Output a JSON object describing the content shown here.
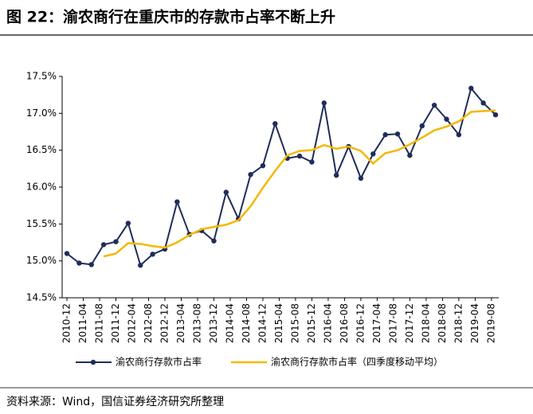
{
  "chart_data": {
    "type": "line",
    "title": "图 22：渝农商行在重庆市的存款市占率不断上升",
    "source": "资料来源：Wind，国信证券经济研究所整理",
    "x": [
      "2010-12",
      "2011-03",
      "2011-06",
      "2011-09",
      "2011-12",
      "2012-03",
      "2012-06",
      "2012-09",
      "2012-12",
      "2013-03",
      "2013-06",
      "2013-09",
      "2013-12",
      "2014-03",
      "2014-06",
      "2014-09",
      "2014-12",
      "2015-03",
      "2015-06",
      "2015-09",
      "2015-12",
      "2016-03",
      "2016-06",
      "2016-09",
      "2016-12",
      "2017-03",
      "2017-06",
      "2017-09",
      "2017-12",
      "2018-03",
      "2018-06",
      "2018-09",
      "2018-12",
      "2019-03",
      "2019-06",
      "2019-09"
    ],
    "xticks": [
      "2010-12",
      "2011-04",
      "2011-08",
      "2011-12",
      "2012-04",
      "2012-08",
      "2012-12",
      "2013-04",
      "2013-08",
      "2013-12",
      "2014-04",
      "2014-08",
      "2014-12",
      "2015-04",
      "2015-08",
      "2015-12",
      "2016-04",
      "2016-08",
      "2016-12",
      "2017-04",
      "2017-08",
      "2017-12",
      "2018-04",
      "2018-08",
      "2018-12",
      "2019-04",
      "2019-08"
    ],
    "series": [
      {
        "name": "渝农商行存款市占率",
        "color": "#1f2d5a",
        "marker": true,
        "values": [
          15.1,
          14.97,
          14.95,
          15.22,
          15.26,
          15.51,
          14.94,
          15.09,
          15.16,
          15.8,
          15.36,
          15.41,
          15.27,
          15.93,
          15.57,
          16.17,
          16.29,
          16.86,
          16.39,
          16.42,
          16.34,
          17.14,
          16.16,
          16.55,
          16.12,
          16.45,
          16.71,
          16.72,
          16.43,
          16.83,
          17.11,
          16.92,
          16.71,
          17.34,
          17.14,
          16.98
        ]
      },
      {
        "name": "渝农商行存款市占率（四季度移动平均）",
        "color": "#f5b800",
        "marker": false,
        "values": [
          null,
          null,
          null,
          15.06,
          15.1,
          15.24,
          15.23,
          15.2,
          15.18,
          15.25,
          15.35,
          15.43,
          15.46,
          15.49,
          15.55,
          15.74,
          15.99,
          16.22,
          16.43,
          16.49,
          16.5,
          16.57,
          16.52,
          16.55,
          16.49,
          16.32,
          16.46,
          16.5,
          16.58,
          16.67,
          16.77,
          16.82,
          16.89,
          17.02,
          17.03,
          17.04
        ]
      }
    ],
    "ylim": [
      14.5,
      17.5
    ],
    "yticks": [
      {
        "value": 14.5,
        "label": "14.5%"
      },
      {
        "value": 15.0,
        "label": "15.0%"
      },
      {
        "value": 15.5,
        "label": "15.5%"
      },
      {
        "value": 16.0,
        "label": "16.0%"
      },
      {
        "value": 16.5,
        "label": "16.5%"
      },
      {
        "value": 17.0,
        "label": "17.0%"
      },
      {
        "value": 17.5,
        "label": "17.5%"
      }
    ],
    "grid": false
  }
}
